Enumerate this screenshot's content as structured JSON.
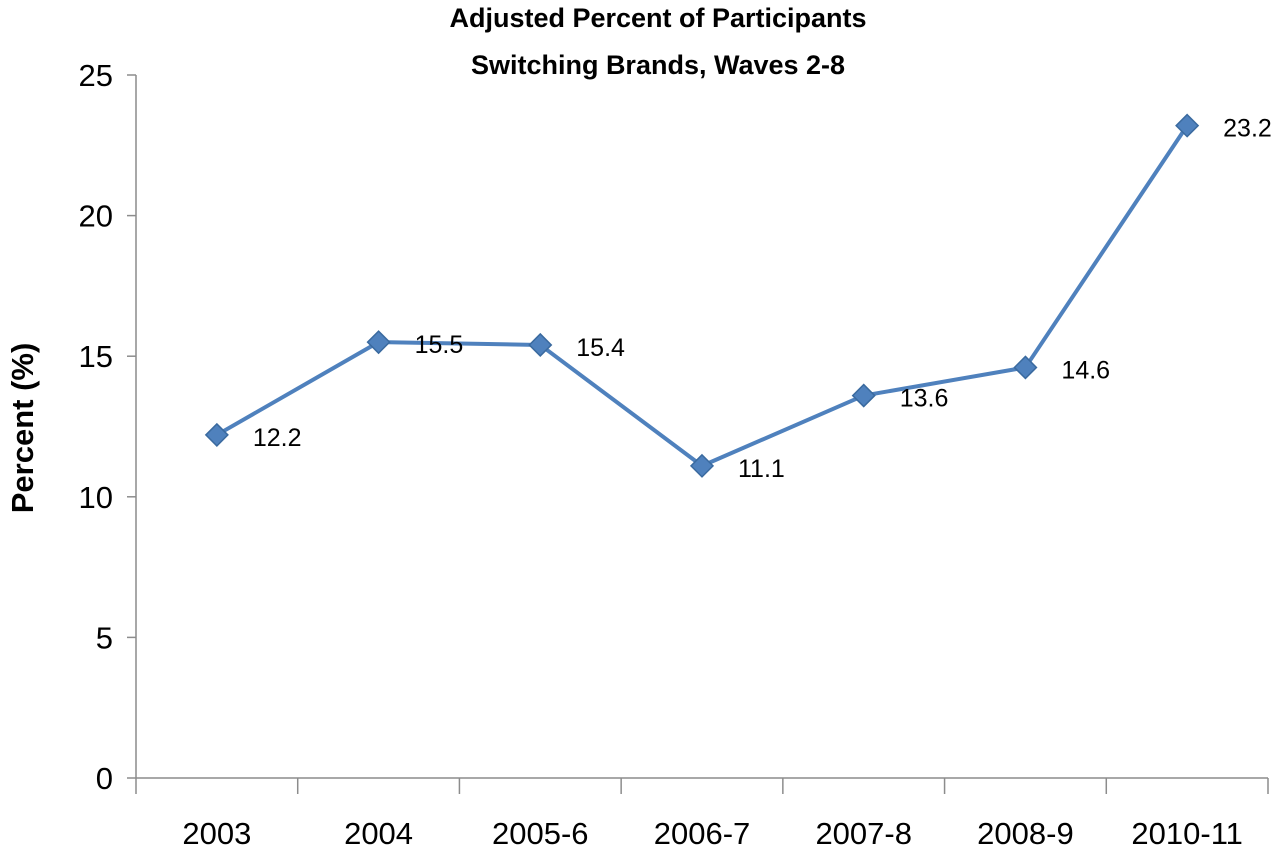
{
  "chart_data": {
    "type": "line",
    "title_lines": [
      "Adjusted Percent of Participants",
      "Switching Brands,  Waves 2-8"
    ],
    "xlabel": "",
    "ylabel": "Percent (%)",
    "categories": [
      "2003",
      "2004",
      "2005-6",
      "2006-7",
      "2007-8",
      "2008-9",
      "2010-11"
    ],
    "series": [
      {
        "values": [
          12.2,
          15.5,
          15.4,
          11.1,
          13.6,
          14.6,
          23.2
        ],
        "data_labels": [
          "12.2",
          "15.5",
          "15.4",
          "11.1",
          "13.6",
          "14.6",
          "23.2"
        ],
        "color": "#4f81bd",
        "marker": "diamond"
      }
    ],
    "ylim": [
      0,
      25
    ],
    "yticks": [
      "0",
      "5",
      "10",
      "15",
      "20",
      "25"
    ],
    "grid": false,
    "legend": "none"
  }
}
